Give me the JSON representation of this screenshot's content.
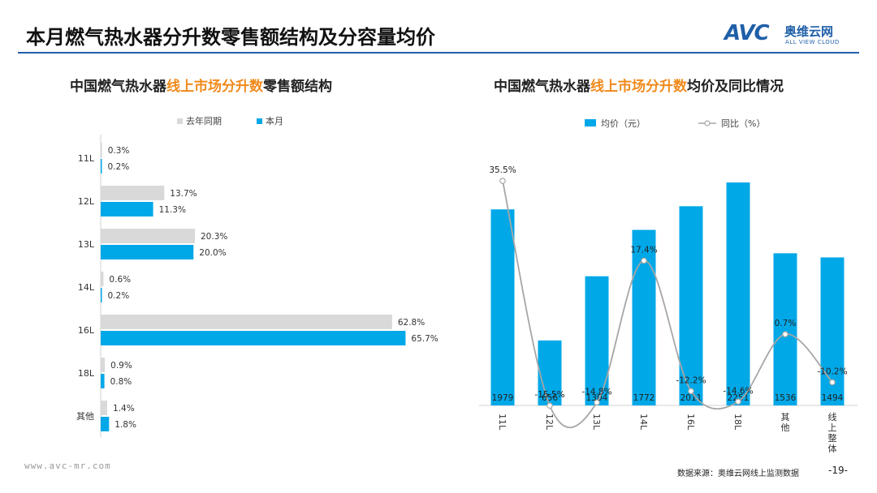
{
  "header": {
    "title": "本月燃气热水器分升数零售额结构及分容量均价",
    "logo_mark": "AVC",
    "logo_cn": "奥维云网",
    "logo_en": "ALL VIEW CLOUD"
  },
  "left_title": {
    "a": "中国燃气热水器",
    "b": "线上市场分升数",
    "c": "零售额结构"
  },
  "right_title": {
    "a": "中国燃气热水器",
    "b": "线上市场分升数",
    "c": "均价及同比情况"
  },
  "footer": {
    "website": "www.avc-mr.com",
    "source": "数据来源：奥维云网线上监测数据",
    "page": "-19-"
  },
  "colors": {
    "accent": "#00a8e8",
    "gray_bar": "#d9d9d9",
    "line": "#a6a6a6",
    "title_rule": "#1f5fa8",
    "highlight": "#f08a1c"
  },
  "chart_data": [
    {
      "type": "bar",
      "orientation": "horizontal",
      "title": "中国燃气热水器线上市场分升数零售额结构",
      "categories": [
        "11L",
        "12L",
        "13L",
        "14L",
        "16L",
        "18L",
        "其他"
      ],
      "series": [
        {
          "name": "去年同期",
          "values": [
            0.3,
            13.7,
            20.3,
            0.6,
            62.8,
            0.9,
            1.4
          ],
          "labels": [
            "0.3%",
            "13.7%",
            "20.3%",
            "0.6%",
            "62.8%",
            "0.9%",
            "1.4%"
          ]
        },
        {
          "name": "本月",
          "values": [
            0.2,
            11.3,
            20.0,
            0.2,
            65.7,
            0.8,
            1.8
          ],
          "labels": [
            "0.2%",
            "11.3%",
            "20.0%",
            "0.2%",
            "65.7%",
            "0.8%",
            "1.8%"
          ]
        }
      ],
      "xlim": [
        0,
        70
      ],
      "legend_position": "top"
    },
    {
      "type": "bar",
      "title": "中国燃气热水器线上市场分升数均价及同比情况",
      "categories": [
        "11L",
        "12L",
        "13L",
        "14L",
        "16L",
        "18L",
        "其他",
        "线上整体"
      ],
      "series": [
        {
          "name": "均价（元）",
          "type": "bar",
          "values": [
            1979,
            656,
            1304,
            1772,
            2011,
            2251,
            1536,
            1494
          ]
        },
        {
          "name": "同比（%）",
          "type": "line",
          "values": [
            35.5,
            -15.5,
            -14.8,
            17.4,
            -12.2,
            -14.6,
            0.7,
            -10.2
          ],
          "labels": [
            "35.5%",
            "-15.5%",
            "-14.8%",
            "17.4%",
            "-12.2%",
            "-14.6%",
            "0.7%",
            "-10.2%"
          ]
        }
      ],
      "legend_position": "top"
    }
  ]
}
